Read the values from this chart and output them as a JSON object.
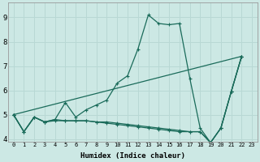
{
  "title": "",
  "xlabel": "Humidex (Indice chaleur)",
  "ylabel": "",
  "bg_color": "#cce8e4",
  "grid_color": "#b8d8d4",
  "line_color": "#1a6b5a",
  "xlim": [
    -0.5,
    23.5
  ],
  "ylim": [
    3.9,
    9.6
  ],
  "xticks": [
    0,
    1,
    2,
    3,
    4,
    5,
    6,
    7,
    8,
    9,
    10,
    11,
    12,
    13,
    14,
    15,
    16,
    17,
    18,
    19,
    20,
    21,
    22,
    23
  ],
  "yticks": [
    4,
    5,
    6,
    7,
    8,
    9
  ],
  "series1_x": [
    0,
    1,
    2,
    3,
    4,
    5,
    6,
    7,
    8,
    9,
    10,
    11,
    12,
    13,
    14,
    15,
    16,
    17,
    18,
    19,
    20,
    21,
    22
  ],
  "series1_y": [
    5.0,
    4.3,
    4.9,
    4.7,
    4.8,
    5.5,
    4.9,
    5.2,
    5.4,
    5.6,
    6.3,
    6.6,
    7.7,
    9.1,
    8.75,
    8.7,
    8.75,
    6.5,
    4.45,
    3.85,
    4.45,
    5.95,
    7.4
  ],
  "series2_x": [
    0,
    1,
    2,
    3,
    4,
    5,
    6,
    7,
    8,
    9,
    10,
    11,
    12,
    13,
    14,
    15,
    16,
    17,
    18,
    19,
    20,
    21,
    22
  ],
  "series2_y": [
    5.0,
    4.3,
    4.9,
    4.7,
    4.8,
    4.75,
    4.75,
    4.75,
    4.7,
    4.7,
    4.65,
    4.6,
    4.55,
    4.5,
    4.45,
    4.4,
    4.35,
    4.3,
    4.3,
    3.85,
    4.45,
    5.95,
    7.4
  ],
  "series3_x": [
    0,
    1,
    2,
    3,
    4,
    5,
    6,
    7,
    8,
    9,
    10,
    11,
    12,
    13,
    14,
    15,
    16,
    17,
    18,
    19,
    20,
    21,
    22
  ],
  "series3_y": [
    5.0,
    4.3,
    4.9,
    4.7,
    4.75,
    4.75,
    4.75,
    4.75,
    4.7,
    4.65,
    4.6,
    4.55,
    4.5,
    4.45,
    4.4,
    4.35,
    4.3,
    4.3,
    4.3,
    3.85,
    4.45,
    5.95,
    7.4
  ],
  "series4_x": [
    0,
    22
  ],
  "series4_y": [
    5.0,
    7.4
  ]
}
